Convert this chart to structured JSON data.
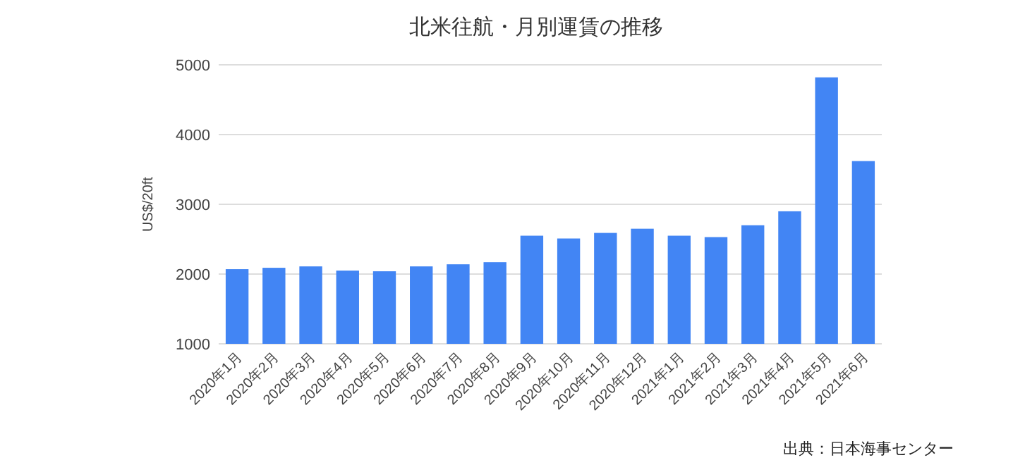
{
  "chart_data": {
    "type": "bar",
    "title": "北米往航・月別運賃の推移",
    "ylabel": "US$/20ft",
    "categories": [
      "2020年1月",
      "2020年2月",
      "2020年3月",
      "2020年4月",
      "2020年5月",
      "2020年6月",
      "2020年7月",
      "2020年8月",
      "2020年9月",
      "2020年10月",
      "2020年11月",
      "2020年12月",
      "2021年1月",
      "2021年2月",
      "2021年3月",
      "2021年4月",
      "2021年5月",
      "2021年6月"
    ],
    "values": [
      2070,
      2090,
      2110,
      2050,
      2040,
      2110,
      2140,
      2170,
      2550,
      2510,
      2590,
      2650,
      2550,
      2530,
      2700,
      2900,
      4820,
      3620
    ],
    "color": "#4285f4",
    "ylim": [
      1000,
      5000
    ],
    "yticks": [
      1000,
      2000,
      3000,
      4000,
      5000
    ],
    "grid": "y",
    "annotations": [
      "出典：日本海事センター"
    ]
  }
}
